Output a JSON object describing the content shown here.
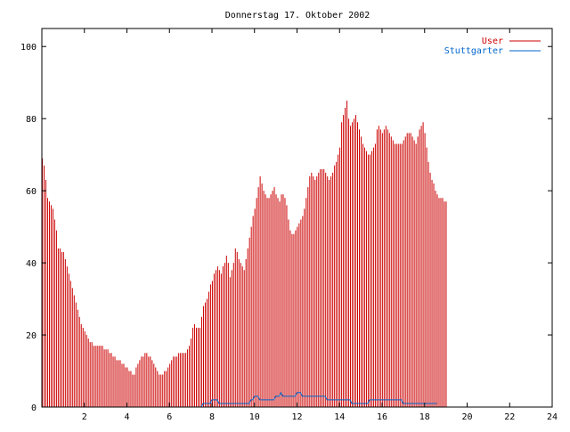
{
  "chart_data": {
    "type": "bar",
    "title": "Donnerstag 17. Oktober 2002",
    "xlabel": "",
    "ylabel": "",
    "xlim": [
      0,
      24
    ],
    "ylim": [
      0,
      105
    ],
    "x_ticks": [
      2,
      4,
      6,
      8,
      10,
      12,
      14,
      16,
      18,
      20,
      22,
      24
    ],
    "y_ticks": [
      0,
      20,
      40,
      60,
      80,
      100
    ],
    "x_tick_labels": [
      "2",
      "4",
      "6",
      "8",
      "10",
      "12",
      "14",
      "16",
      "18",
      "20",
      "22",
      "24"
    ],
    "y_tick_labels": [
      "0",
      "20",
      "40",
      "60",
      "80",
      "100"
    ],
    "grid": false,
    "legend_position": "top-right",
    "sample_interval_hours": 0.0833,
    "series": [
      {
        "name": "User",
        "style": "impulses",
        "color": "#cc0000",
        "values": [
          69,
          67,
          63,
          58,
          57,
          56,
          55,
          52,
          49,
          44,
          44,
          43,
          43,
          41,
          39,
          37,
          35,
          33,
          31,
          29,
          27,
          25,
          23,
          22,
          21,
          20,
          19,
          18,
          18,
          17,
          17,
          17,
          17,
          17,
          17,
          16,
          16,
          16,
          15,
          15,
          14,
          14,
          13,
          13,
          13,
          12,
          12,
          11,
          11,
          10,
          10,
          9,
          9,
          11,
          12,
          13,
          14,
          14,
          15,
          15,
          14,
          14,
          13,
          12,
          11,
          10,
          9,
          9,
          9,
          10,
          10,
          11,
          12,
          13,
          14,
          14,
          14,
          15,
          15,
          15,
          15,
          15,
          16,
          17,
          19,
          22,
          23,
          22,
          22,
          22,
          25,
          28,
          29,
          30,
          32,
          34,
          35,
          37,
          38,
          39,
          38,
          37,
          39,
          40,
          42,
          40,
          36,
          38,
          40,
          44,
          43,
          41,
          40,
          39,
          38,
          41,
          44,
          47,
          50,
          53,
          55,
          58,
          61,
          64,
          62,
          60,
          59,
          58,
          58,
          59,
          60,
          61,
          59,
          58,
          57,
          59,
          59,
          58,
          56,
          52,
          49,
          48,
          48,
          49,
          50,
          51,
          52,
          53,
          55,
          58,
          61,
          64,
          65,
          64,
          63,
          64,
          65,
          66,
          66,
          66,
          65,
          64,
          63,
          64,
          65,
          67,
          68,
          70,
          72,
          79,
          81,
          83,
          85,
          80,
          78,
          79,
          80,
          81,
          79,
          77,
          75,
          73,
          72,
          71,
          70,
          70,
          71,
          72,
          73,
          77,
          78,
          77,
          76,
          77,
          78,
          77,
          76,
          75,
          74,
          73,
          73,
          73,
          73,
          73,
          74,
          75,
          76,
          76,
          76,
          75,
          74,
          73,
          75,
          77,
          78,
          79,
          76,
          72,
          68,
          65,
          63,
          62,
          60,
          59,
          58,
          58,
          58,
          57,
          57
        ]
      },
      {
        "name": "Stuttgarter",
        "style": "lines",
        "color": "#0066cc",
        "values": [
          0,
          0,
          0,
          0,
          0,
          0,
          0,
          0,
          0,
          0,
          0,
          0,
          0,
          0,
          0,
          0,
          0,
          0,
          0,
          0,
          0,
          0,
          0,
          0,
          0,
          0,
          0,
          0,
          0,
          0,
          0,
          0,
          0,
          0,
          0,
          0,
          0,
          0,
          0,
          0,
          0,
          0,
          0,
          0,
          0,
          0,
          0,
          0,
          0,
          0,
          0,
          0,
          0,
          0,
          0,
          0,
          0,
          0,
          0,
          0,
          0,
          0,
          0,
          0,
          0,
          0,
          0,
          0,
          0,
          0,
          0,
          0,
          0,
          0,
          0,
          0,
          0,
          0,
          0,
          0,
          0,
          0,
          0,
          0,
          0,
          0,
          0,
          0,
          0,
          0,
          0,
          1,
          1,
          1,
          1,
          1,
          2,
          2,
          2,
          2,
          1,
          1,
          1,
          1,
          1,
          1,
          1,
          1,
          1,
          1,
          1,
          1,
          1,
          1,
          1,
          1,
          1,
          1,
          2,
          2,
          3,
          3,
          3,
          2,
          2,
          2,
          2,
          2,
          2,
          2,
          2,
          2,
          3,
          3,
          3,
          4,
          3,
          3,
          3,
          3,
          3,
          3,
          3,
          3,
          4,
          4,
          4,
          3,
          3,
          3,
          3,
          3,
          3,
          3,
          3,
          3,
          3,
          3,
          3,
          3,
          3,
          2,
          2,
          2,
          2,
          2,
          2,
          2,
          2,
          2,
          2,
          2,
          2,
          2,
          2,
          1,
          1,
          1,
          1,
          1,
          1,
          1,
          1,
          1,
          1,
          2,
          2,
          2,
          2,
          2,
          2,
          2,
          2,
          2,
          2,
          2,
          2,
          2,
          2,
          2,
          2,
          2,
          2,
          2,
          1,
          1,
          1,
          1,
          1,
          1,
          1,
          1,
          1,
          1,
          1,
          1,
          1,
          1,
          1,
          1,
          1,
          1,
          1,
          1
        ]
      }
    ]
  }
}
